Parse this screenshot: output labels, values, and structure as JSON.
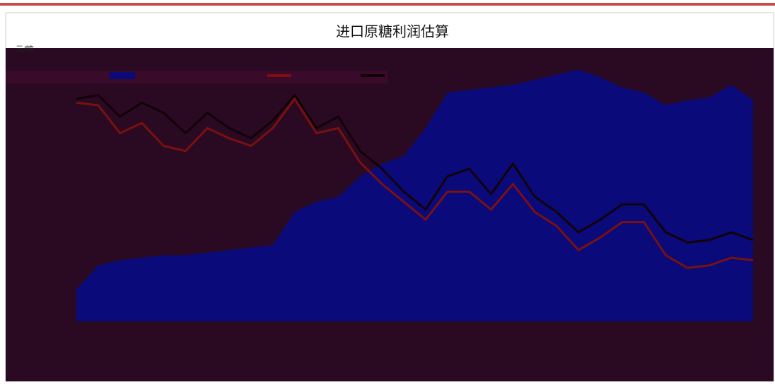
{
  "chart_data": {
    "type": "area-line",
    "title": "进口原糖利润估算",
    "unit": "元/吨",
    "categories": [
      null,
      null,
      null,
      null,
      null,
      null,
      null,
      null,
      null,
      null,
      null,
      null,
      null,
      null,
      null,
      null,
      null,
      null,
      null,
      null,
      null,
      null,
      null,
      null,
      null,
      null,
      null,
      null,
      null,
      null,
      null,
      null
    ],
    "ylim": [
      0,
      100
    ],
    "series": [
      {
        "color": "#0a0a7a",
        "kind": "area",
        "values": [
          12.5,
          22,
          24,
          25,
          26,
          26,
          27,
          28,
          29,
          30,
          43,
          47,
          49,
          57,
          62,
          65,
          76,
          90,
          91,
          92,
          93,
          95,
          97,
          99,
          96,
          92,
          90,
          85,
          87,
          88,
          93,
          87
        ]
      },
      {
        "color": "#7a1010",
        "kind": "line",
        "values": [
          86,
          85,
          74,
          78,
          69,
          67,
          76,
          72,
          69,
          76,
          87.5,
          74,
          76,
          62.5,
          54,
          47,
          40,
          51,
          51,
          44,
          54,
          43,
          37.5,
          28,
          33,
          39,
          39,
          26,
          21,
          22,
          25,
          24
        ]
      },
      {
        "color": "#120208",
        "kind": "line",
        "values": [
          87.5,
          89,
          80.5,
          86,
          82,
          74,
          82,
          76,
          72,
          79,
          89,
          76,
          80.5,
          67,
          60,
          51,
          44,
          57,
          60,
          50,
          62,
          49,
          43,
          35,
          40,
          46,
          46,
          35,
          31,
          32,
          35,
          32
        ]
      }
    ]
  }
}
